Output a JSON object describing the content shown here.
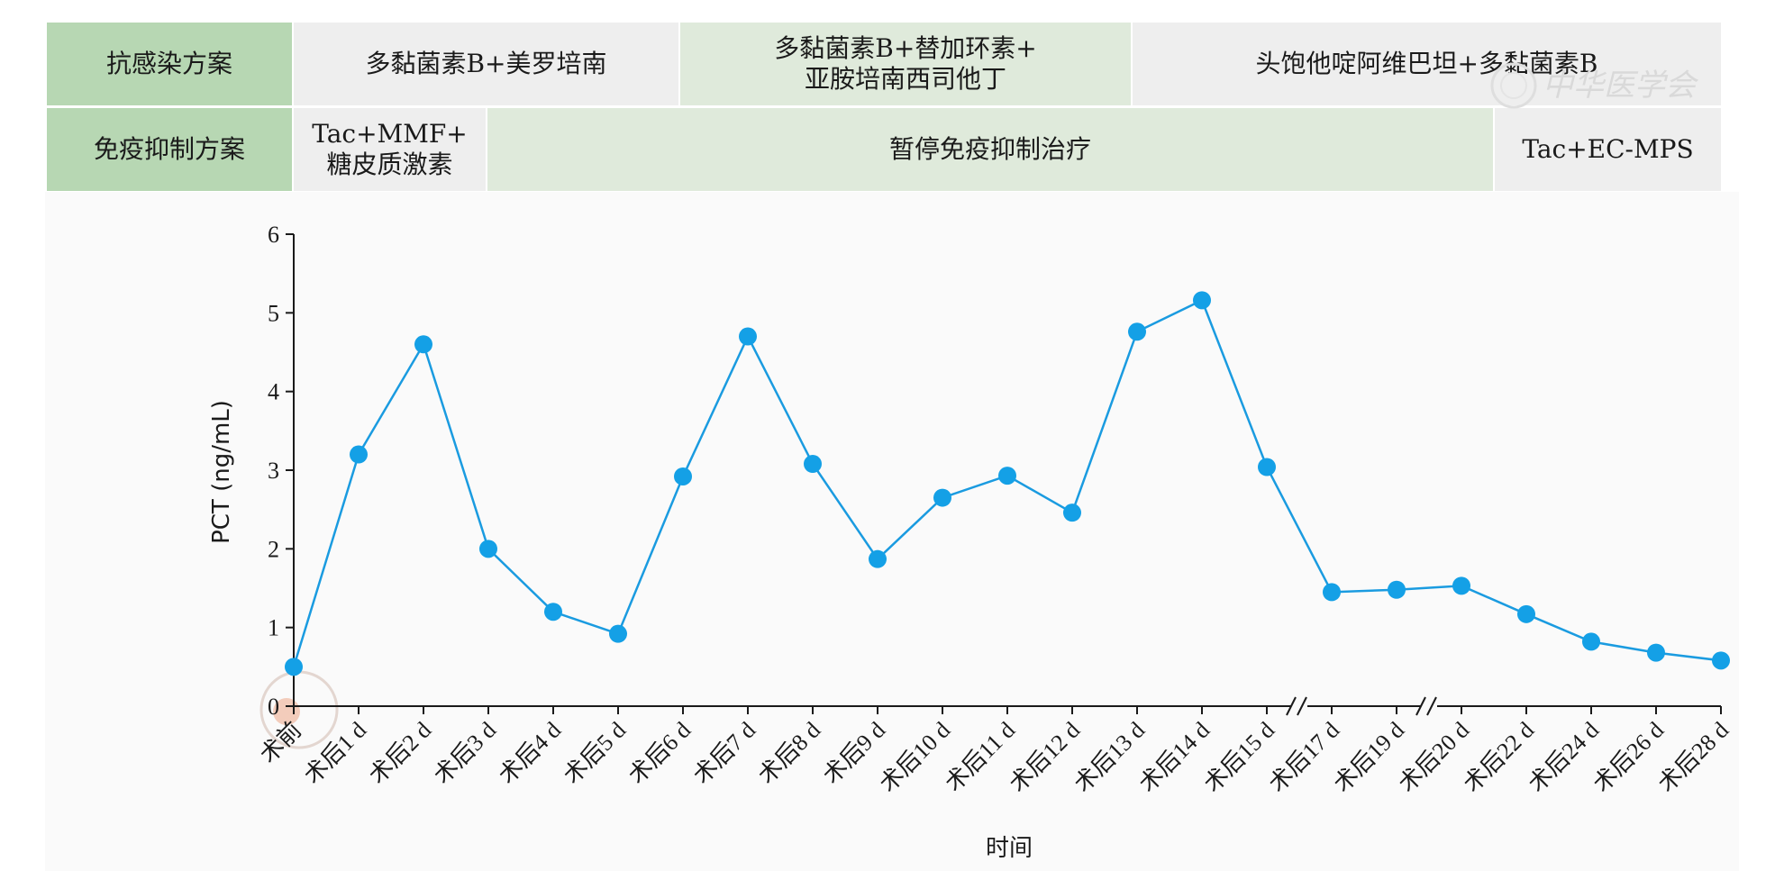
{
  "table": {
    "row1": {
      "header": "抗感染方案",
      "cells": [
        "多黏菌素B+美罗培南",
        "多黏菌素B+替加环素+\n亚胺培南西司他丁",
        "头饱他啶阿维巴坦+多黏菌素B"
      ]
    },
    "row2": {
      "header": "免疫抑制方案",
      "cells": [
        "Tac+MMF+\n糖皮质激素",
        "暂停免疫抑制治疗",
        "Tac+EC-MPS"
      ]
    }
  },
  "watermark": "中华医学会",
  "colors": {
    "line": "#1a9be0",
    "marker": "#14a0e6",
    "header_green": "#b7d7b3",
    "light_green": "#dfeadb",
    "light_gray": "#eeeeee"
  },
  "chart_data": {
    "type": "line",
    "title": "",
    "xlabel": "时间",
    "ylabel": "PCT (ng/mL)",
    "ylim": [
      0,
      6
    ],
    "yticks": [
      0,
      1,
      2,
      3,
      4,
      5,
      6
    ],
    "grid": false,
    "axis_breaks_after": [
      "术后15 d",
      "术后19 d"
    ],
    "categories": [
      "术前",
      "术后1 d",
      "术后2 d",
      "术后3 d",
      "术后4 d",
      "术后5 d",
      "术后6 d",
      "术后7 d",
      "术后8 d",
      "术后9 d",
      "术后10 d",
      "术后11 d",
      "术后12 d",
      "术后13 d",
      "术后14 d",
      "术后15 d",
      "术后17 d",
      "术后19 d",
      "术后20 d",
      "术后22 d",
      "术后24 d",
      "术后26 d",
      "术后28 d"
    ],
    "series": [
      {
        "values": [
          0.5,
          3.2,
          4.6,
          2.0,
          1.2,
          0.92,
          2.92,
          4.7,
          3.08,
          1.87,
          2.65,
          2.93,
          2.46,
          4.76,
          5.16,
          3.04,
          1.45,
          1.48,
          1.53,
          1.17,
          0.82,
          0.68,
          0.58
        ]
      }
    ]
  }
}
